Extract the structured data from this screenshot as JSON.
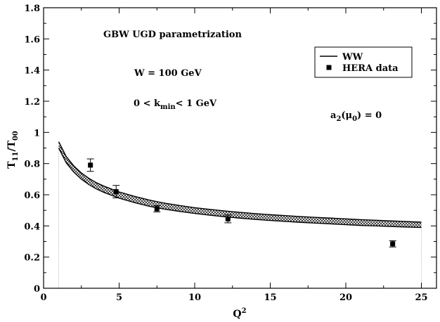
{
  "chart_data": {
    "type": "line",
    "xlabel": "Q",
    "xlabel_sup": "2",
    "ylabel_main": "T",
    "ylabel_sub1": "11",
    "ylabel_mid": "/T",
    "ylabel_sub2": "00",
    "xlim": [
      0,
      26
    ],
    "ylim": [
      0,
      1.8
    ],
    "xticks": [
      0,
      5,
      10,
      15,
      20,
      25
    ],
    "yticks": [
      0,
      0.2,
      0.4,
      0.6,
      0.8,
      1,
      1.2,
      1.4,
      1.6,
      1.8
    ],
    "ytick_labels": [
      "0",
      "0.2",
      "0.4",
      "0.6",
      "0.8",
      "1",
      "1.2",
      "1.4",
      "1.6",
      "1.8"
    ],
    "grid": false,
    "legend_position": "top-right",
    "annotations": {
      "title": "GBW UGD parametrization",
      "energy": "W = 100 GeV",
      "kmin_pre": "0 < k",
      "kmin_sub": "min",
      "kmin_post": "< 1 GeV",
      "a2_pre": "a",
      "a2_sub1": "2",
      "a2_mid": "(μ",
      "a2_sub2": "0",
      "a2_post": ") = 0"
    },
    "series": [
      {
        "name": "WW",
        "kind": "band",
        "x": [
          1,
          1.5,
          2,
          2.5,
          3,
          3.5,
          4,
          5,
          6,
          7,
          7.5,
          8,
          9,
          10,
          11,
          12,
          13,
          14,
          15,
          16,
          17,
          18,
          19,
          20,
          21,
          22,
          23,
          24,
          25
        ],
        "upper": [
          0.94,
          0.845,
          0.785,
          0.74,
          0.705,
          0.677,
          0.655,
          0.618,
          0.59,
          0.566,
          0.556,
          0.546,
          0.531,
          0.517,
          0.506,
          0.496,
          0.487,
          0.479,
          0.472,
          0.466,
          0.46,
          0.455,
          0.45,
          0.445,
          0.44,
          0.436,
          0.432,
          0.428,
          0.424
        ],
        "lower": [
          0.9,
          0.805,
          0.745,
          0.7,
          0.665,
          0.637,
          0.615,
          0.578,
          0.55,
          0.526,
          0.516,
          0.508,
          0.493,
          0.48,
          0.469,
          0.459,
          0.45,
          0.442,
          0.435,
          0.429,
          0.423,
          0.418,
          0.413,
          0.408,
          0.403,
          0.4,
          0.396,
          0.393,
          0.39
        ]
      },
      {
        "name": "HERA data",
        "kind": "points",
        "x": [
          3.1,
          4.8,
          7.5,
          12.2,
          23.1
        ],
        "y": [
          0.79,
          0.62,
          0.51,
          0.445,
          0.285
        ],
        "err": [
          0.04,
          0.04,
          0.02,
          0.025,
          0.02
        ]
      }
    ],
    "vlines_x": [
      1,
      25
    ]
  }
}
